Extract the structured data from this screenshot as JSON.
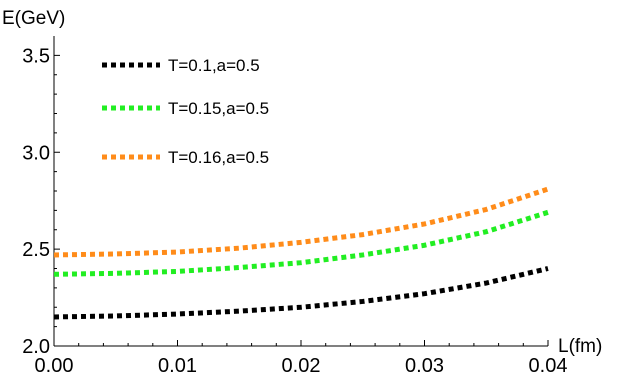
{
  "chart_data": {
    "type": "line",
    "title": "",
    "xlabel": "L(fm)",
    "ylabel": "E(GeV)",
    "xlim": [
      0.0,
      0.04
    ],
    "ylim": [
      2.0,
      3.6
    ],
    "x_ticks": [
      "0.00",
      "0.01",
      "0.02",
      "0.03",
      "0.04"
    ],
    "y_ticks": [
      "2.0",
      "2.5",
      "3.0",
      "3.5"
    ],
    "grid": false,
    "legend_position": "top-left",
    "series": [
      {
        "name": "T=0.1,a=0.5",
        "color": "#000000",
        "style": "dotted",
        "x": [
          0.0,
          0.005,
          0.01,
          0.015,
          0.02,
          0.025,
          0.03,
          0.035,
          0.04
        ],
        "y": [
          2.15,
          2.155,
          2.165,
          2.18,
          2.2,
          2.23,
          2.27,
          2.325,
          2.4
        ]
      },
      {
        "name": "T=0.15,a=0.5",
        "color": "#22ee22",
        "style": "dotted",
        "x": [
          0.0,
          0.005,
          0.01,
          0.015,
          0.02,
          0.025,
          0.03,
          0.035,
          0.04
        ],
        "y": [
          2.37,
          2.375,
          2.385,
          2.405,
          2.43,
          2.47,
          2.52,
          2.59,
          2.69
        ]
      },
      {
        "name": "T=0.16,a=0.5",
        "color": "#ff8c1a",
        "style": "dotted",
        "x": [
          0.0,
          0.005,
          0.01,
          0.015,
          0.02,
          0.025,
          0.03,
          0.035,
          0.04
        ],
        "y": [
          2.47,
          2.475,
          2.485,
          2.505,
          2.535,
          2.575,
          2.63,
          2.705,
          2.81
        ]
      }
    ]
  }
}
